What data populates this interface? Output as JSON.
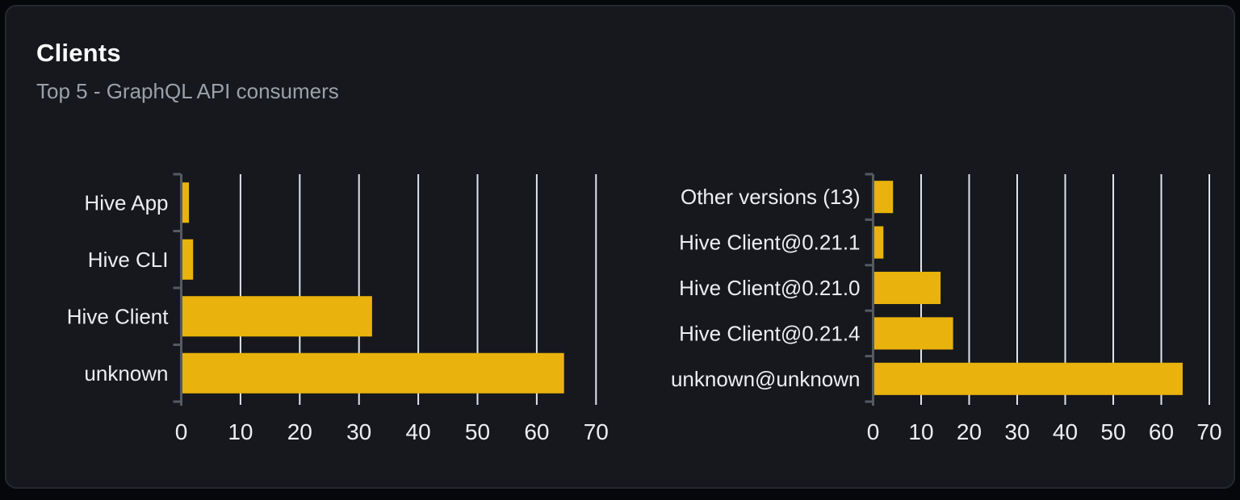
{
  "header": {
    "title": "Clients",
    "subtitle": "Top 5 - GraphQL API consumers"
  },
  "colors": {
    "page_bg": "#06070a",
    "card_bg": "#16181d",
    "card_border": "#24282f",
    "bar": "#e9b20d",
    "gridline": "#dfe3ea",
    "axis": "#565a63",
    "title_text": "#ffffff",
    "subtitle_text": "#9ba1ab",
    "label_text": "#eceef1"
  },
  "chart_data": [
    {
      "type": "bar",
      "orientation": "horizontal",
      "name": "clients-by-name",
      "title": "",
      "xlabel": "",
      "ylabel": "",
      "categories": [
        "Hive App",
        "Hive CLI",
        "Hive Client",
        "unknown"
      ],
      "values": [
        1.1,
        1.8,
        32,
        64.4
      ],
      "xlim": [
        0,
        70
      ],
      "xticks": [
        0,
        10,
        20,
        30,
        40,
        50,
        60,
        70
      ],
      "grid": "vertical",
      "legend": "none"
    },
    {
      "type": "bar",
      "orientation": "horizontal",
      "name": "clients-by-version",
      "title": "",
      "xlabel": "",
      "ylabel": "",
      "categories": [
        "Other versions (13)",
        "Hive Client@0.21.1",
        "Hive Client@0.21.0",
        "Hive Client@0.21.4",
        "unknown@unknown"
      ],
      "values": [
        3.9,
        1.9,
        13.8,
        16.4,
        64.2
      ],
      "xlim": [
        0,
        70
      ],
      "xticks": [
        0,
        10,
        20,
        30,
        40,
        50,
        60,
        70
      ],
      "grid": "vertical",
      "legend": "none"
    }
  ]
}
